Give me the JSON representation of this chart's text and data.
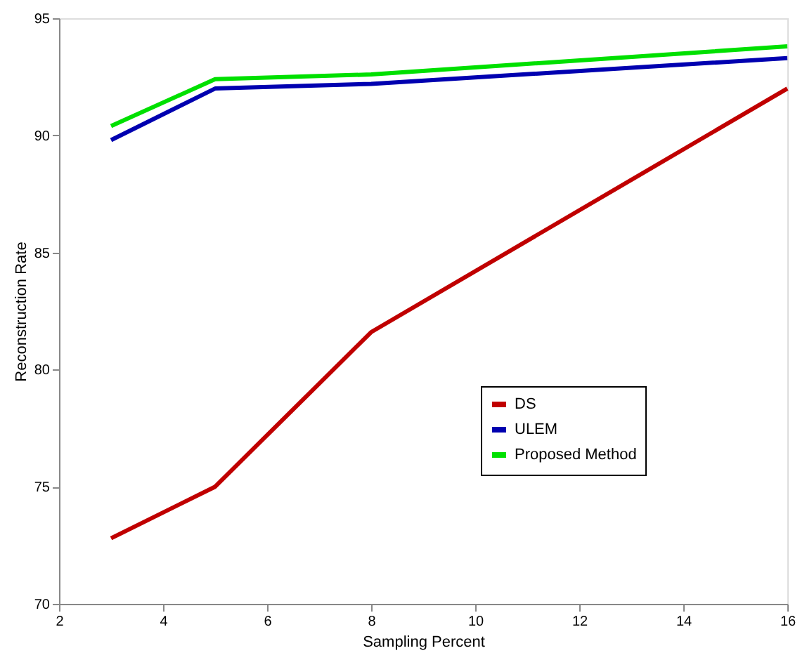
{
  "chart_data": {
    "type": "line",
    "xlabel": "Sampling Percent",
    "ylabel": "Reconstruction Rate",
    "x": [
      3,
      5,
      8,
      16
    ],
    "series": [
      {
        "name": "DS",
        "color": "#c00000",
        "values": [
          72.8,
          75.0,
          81.6,
          92.0
        ]
      },
      {
        "name": "ULEM",
        "color": "#0000b0",
        "values": [
          89.8,
          92.0,
          92.2,
          93.3
        ]
      },
      {
        "name": "Proposed Method",
        "color": "#00e000",
        "values": [
          90.4,
          92.4,
          92.6,
          93.8
        ]
      }
    ],
    "xlim": [
      2,
      16
    ],
    "xticks": [
      2,
      4,
      6,
      8,
      10,
      12,
      14,
      16
    ],
    "ylim": [
      70,
      95
    ],
    "yticks": [
      70,
      75,
      80,
      85,
      90,
      95
    ],
    "grid": false,
    "legend": "right",
    "marker": "none",
    "line_style": "solid"
  }
}
